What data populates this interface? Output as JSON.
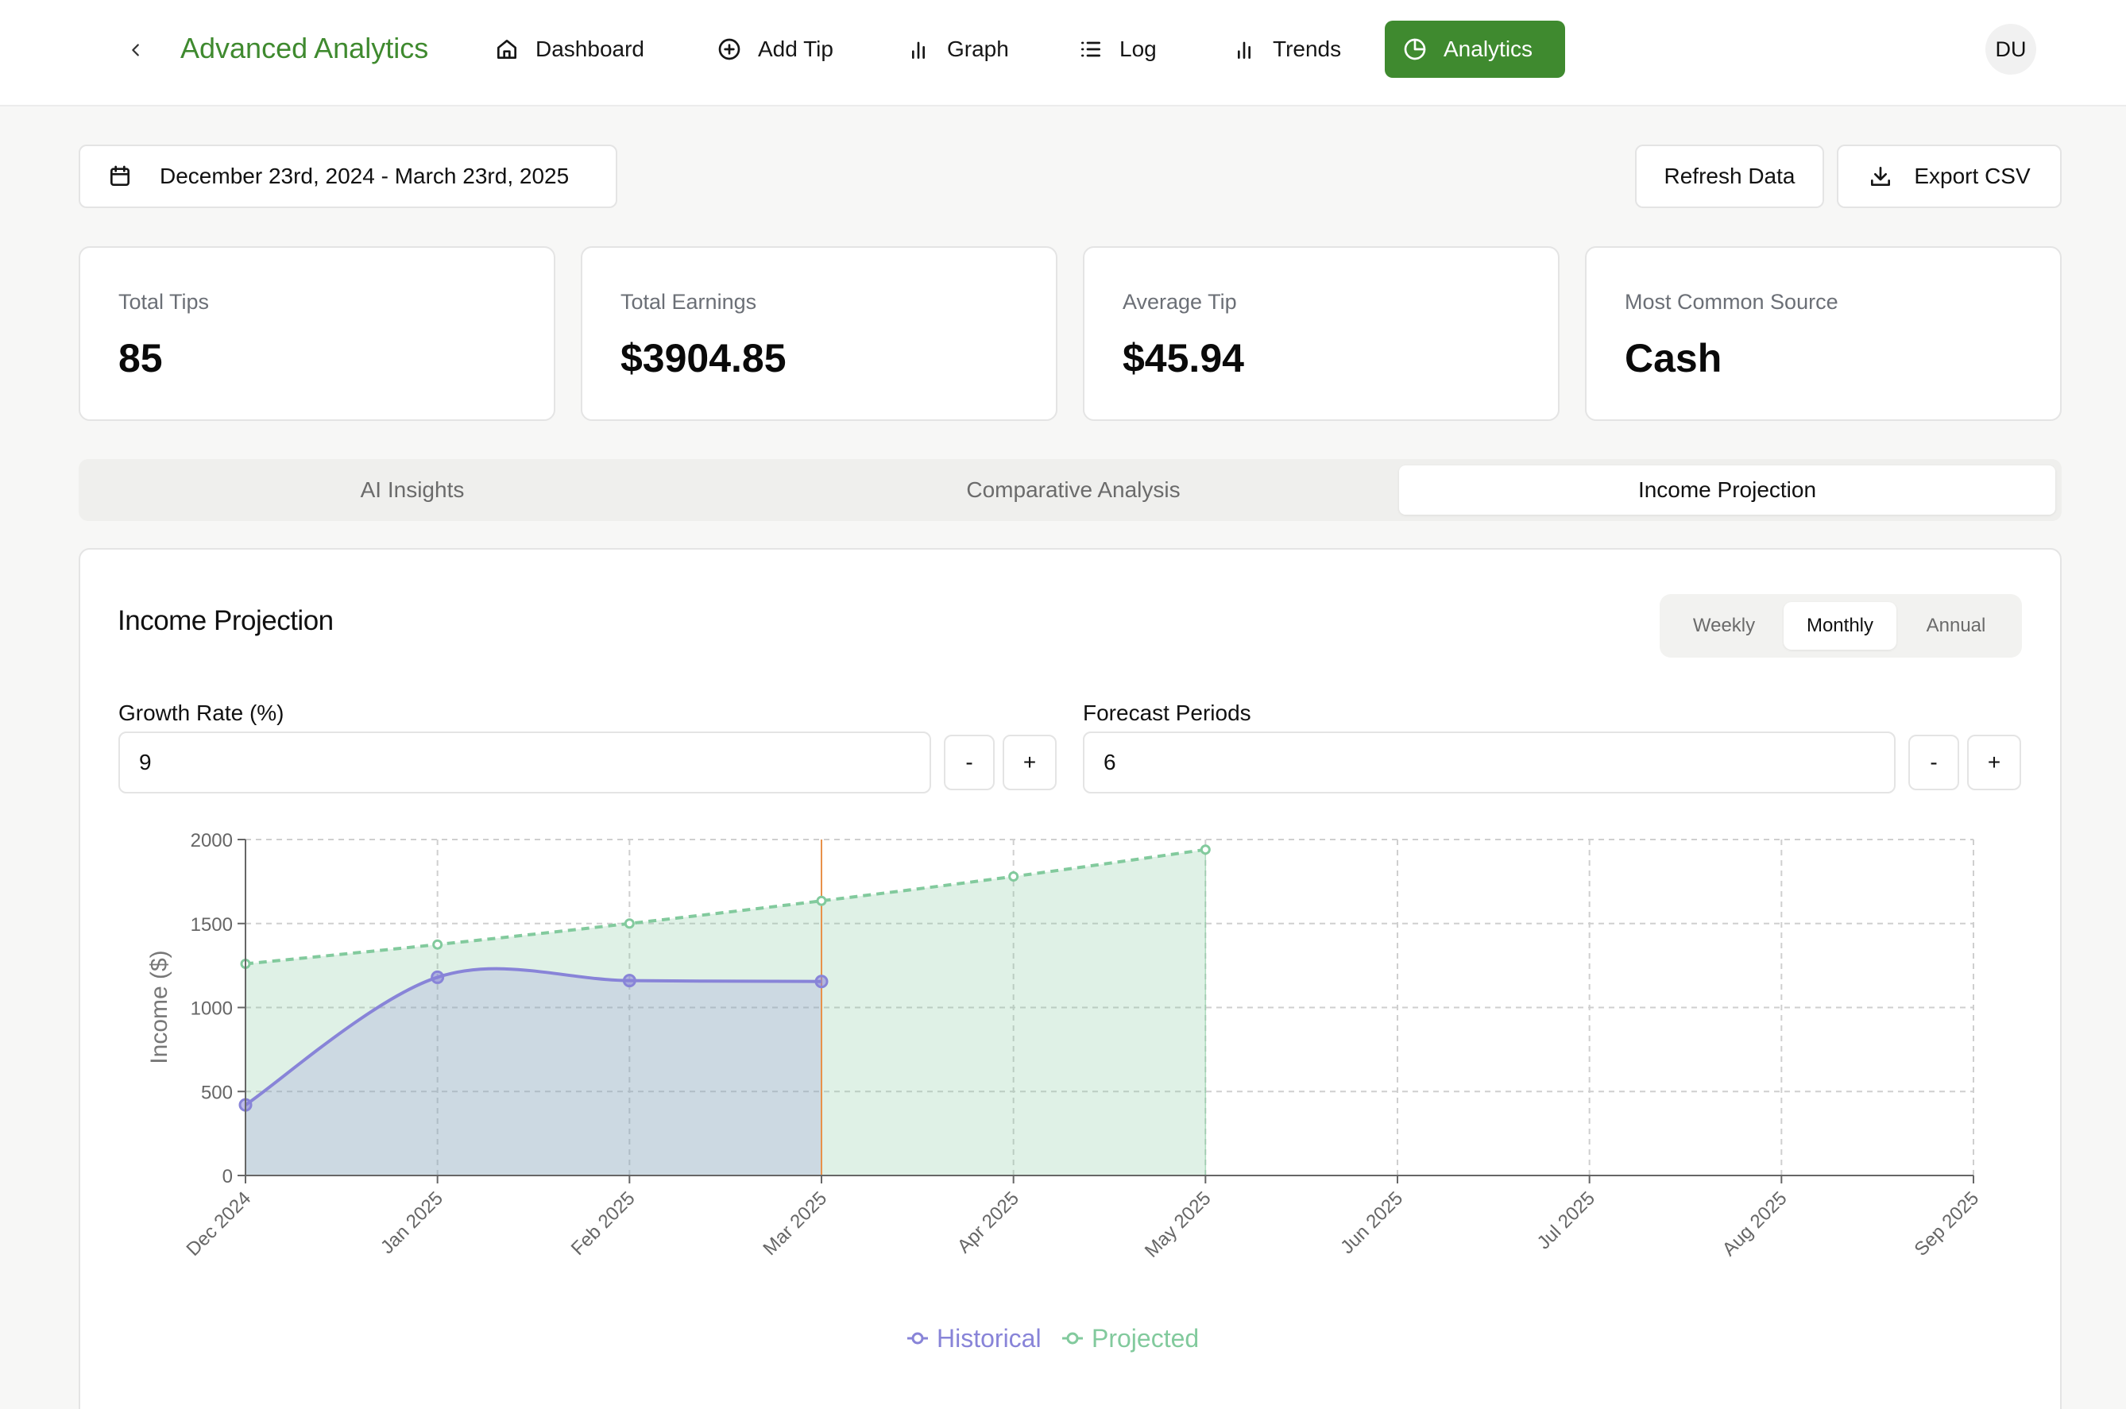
{
  "nav": {
    "title": "Advanced Analytics",
    "items": [
      {
        "label": "Dashboard",
        "icon": "home-icon"
      },
      {
        "label": "Add Tip",
        "icon": "plus-circle-icon"
      },
      {
        "label": "Graph",
        "icon": "bar-chart-icon"
      },
      {
        "label": "Log",
        "icon": "list-icon"
      },
      {
        "label": "Trends",
        "icon": "bar-chart-icon"
      },
      {
        "label": "Analytics",
        "icon": "pie-chart-icon",
        "active": true
      }
    ],
    "avatar": "DU",
    "accent_color": "#3f8a2f"
  },
  "toolbar": {
    "date_range": "December 23rd, 2024 - March 23rd, 2025",
    "refresh_label": "Refresh Data",
    "export_label": "Export CSV"
  },
  "stats": [
    {
      "label": "Total Tips",
      "value": "85"
    },
    {
      "label": "Total Earnings",
      "value": "$3904.85"
    },
    {
      "label": "Average Tip",
      "value": "$45.94"
    },
    {
      "label": "Most Common Source",
      "value": "Cash"
    }
  ],
  "tabs": [
    {
      "label": "AI Insights"
    },
    {
      "label": "Comparative Analysis"
    },
    {
      "label": "Income Projection",
      "active": true
    }
  ],
  "projection": {
    "title": "Income Projection",
    "periods": [
      "Weekly",
      "Monthly",
      "Annual"
    ],
    "selected_period": "Monthly",
    "growth_label": "Growth Rate (%)",
    "growth_value": "9",
    "forecast_label": "Forecast Periods",
    "forecast_value": "6",
    "minus_label": "-",
    "plus_label": "+"
  },
  "chart_data": {
    "type": "area",
    "categories": [
      "Dec 2024",
      "Jan 2025",
      "Feb 2025",
      "Mar 2025",
      "Apr 2025",
      "May 2025",
      "Jun 2025",
      "Jul 2025",
      "Aug 2025",
      "Sep 2025"
    ],
    "series": [
      {
        "name": "Historical",
        "color": "#8884d8",
        "values": [
          420,
          1180,
          1160,
          1155,
          null,
          null,
          null,
          null,
          null,
          null
        ]
      },
      {
        "name": "Projected",
        "color": "#82ca9d",
        "values": [
          1260,
          1375,
          1500,
          1635,
          1780,
          1940,
          null,
          null,
          null,
          null
        ]
      }
    ],
    "current_marker": "Mar 2025",
    "marker_color": "#e8914a",
    "ylabel": "Income ($)",
    "xlabel": "",
    "yticks": [
      0,
      500,
      1000,
      1500,
      2000
    ],
    "ylim": [
      0,
      2000
    ],
    "grid": true,
    "legend": "bottom-center"
  }
}
